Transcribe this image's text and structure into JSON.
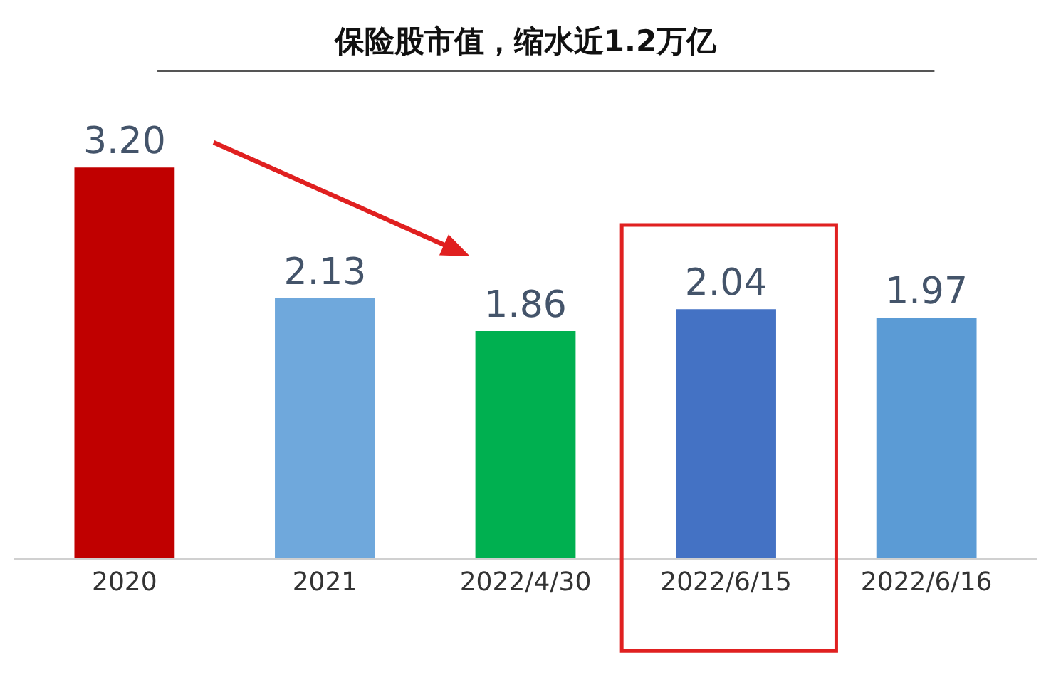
{
  "chart_data": {
    "type": "bar",
    "title": "保险股市值，缩水近1.2万亿",
    "categories": [
      "2020",
      "2021",
      "2022/4/30",
      "2022/6/15",
      "2022/6/16"
    ],
    "values": [
      3.2,
      2.13,
      1.86,
      2.04,
      1.97
    ],
    "value_labels": [
      "3.20",
      "2.13",
      "1.86",
      "2.04",
      "1.97"
    ],
    "colors": [
      "#c00000",
      "#6fa8dc",
      "#00b050",
      "#4472c4",
      "#5b9bd5"
    ],
    "legend": false
  }
}
